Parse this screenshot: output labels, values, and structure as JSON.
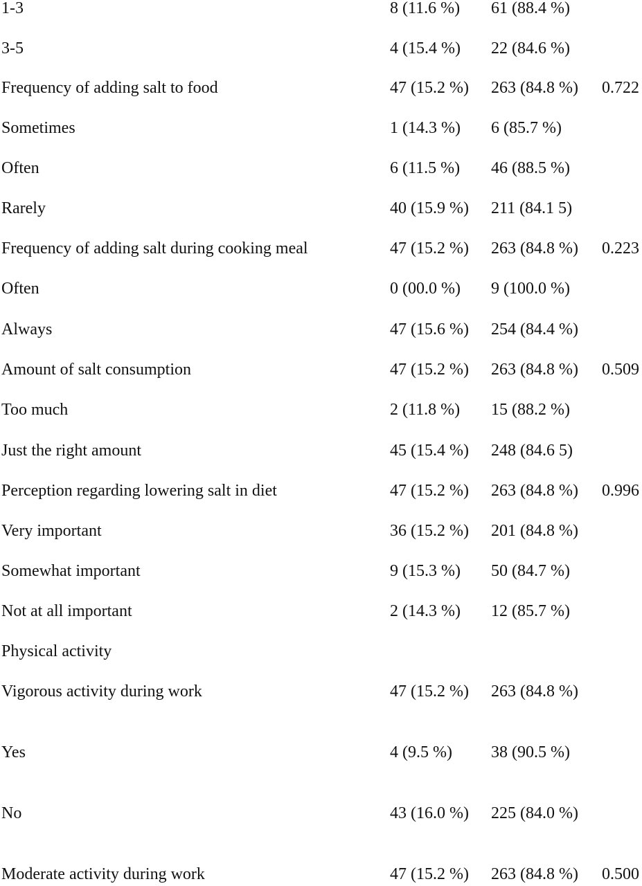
{
  "table": {
    "rows": [
      [
        "1-3",
        "8 (11.6 %)",
        "61 (88.4 %)"
      ],
      [
        "3-5",
        "4 (15.4 %)",
        "22 (84.6 %)"
      ],
      [
        "Frequency of adding salt to food",
        "47 (15.2 %)",
        "263 (84.8 %)",
        "0.722"
      ],
      [
        "Sometimes",
        "1 (14.3 %)",
        "6 (85.7 %)"
      ],
      [
        "Often",
        "6 (11.5 %)",
        "46 (88.5 %)"
      ],
      [
        "Rarely",
        "40 (15.9 %)",
        "211 (84.1 5)"
      ],
      [
        "Frequency of adding salt during cooking meal",
        "47 (15.2 %)",
        "263 (84.8 %)",
        "0.223"
      ],
      [
        "Often",
        "0 (00.0 %)",
        "9 (100.0 %)"
      ],
      [
        "Always",
        "47 (15.6 %)",
        "254 (84.4 %)"
      ],
      [
        "Amount of salt consumption",
        "47 (15.2 %)",
        "263 (84.8 %)",
        "0.509"
      ],
      [
        "Too much",
        "2 (11.8 %)",
        "15 (88.2 %)"
      ],
      [
        "Just the right amount",
        "45 (15.4 %)",
        "248 (84.6 5)"
      ],
      [
        "Perception regarding lowering salt in diet",
        "47 (15.2 %)",
        "263 (84.8 %)",
        "0.996"
      ],
      [
        "Very important",
        "36 (15.2 %)",
        "201 (84.8 %)"
      ],
      [
        "Somewhat important",
        "9 (15.3 %)",
        "50 (84.7 %)"
      ],
      [
        "Not at all important",
        "2 (14.3 %)",
        "12 (85.7 %)"
      ],
      [
        "Physical activity"
      ],
      [
        "Vigorous activity during work",
        "47 (15.2 %)",
        "263 (84.8 %)"
      ],
      [
        "Yes",
        "4 (9.5 %)",
        "38 (90.5 %)"
      ],
      [
        "No",
        "43 (16.0 %)",
        "225 (84.0 %)"
      ],
      [
        "Moderate activity during work",
        "47 (15.2 %)",
        "263 (84.8 %)",
        "0.500"
      ]
    ]
  }
}
